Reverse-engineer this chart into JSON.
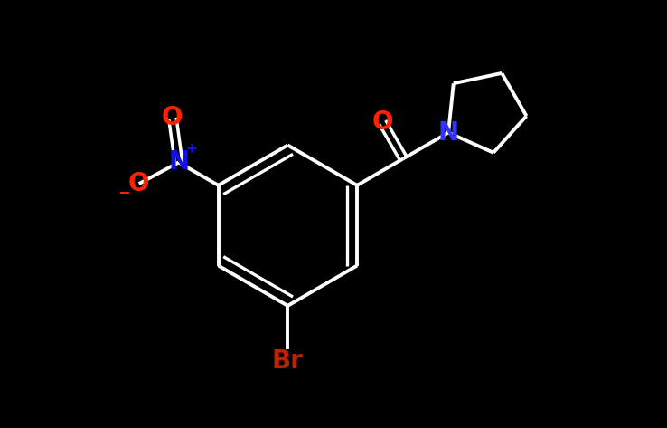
{
  "background_color": "#000000",
  "bond_color": "#ffffff",
  "bond_width": 2.8,
  "atom_colors": {
    "O": "#ff2200",
    "N_nitro": "#1111ee",
    "N_amide": "#3333ff",
    "Br": "#bb2200",
    "C": "#ffffff"
  },
  "font_size_atom": 20,
  "font_size_small": 13,
  "figsize": [
    7.38,
    4.73
  ],
  "dpi": 100,
  "xlim": [
    -3.2,
    4.0
  ],
  "ylim": [
    -2.8,
    2.8
  ]
}
